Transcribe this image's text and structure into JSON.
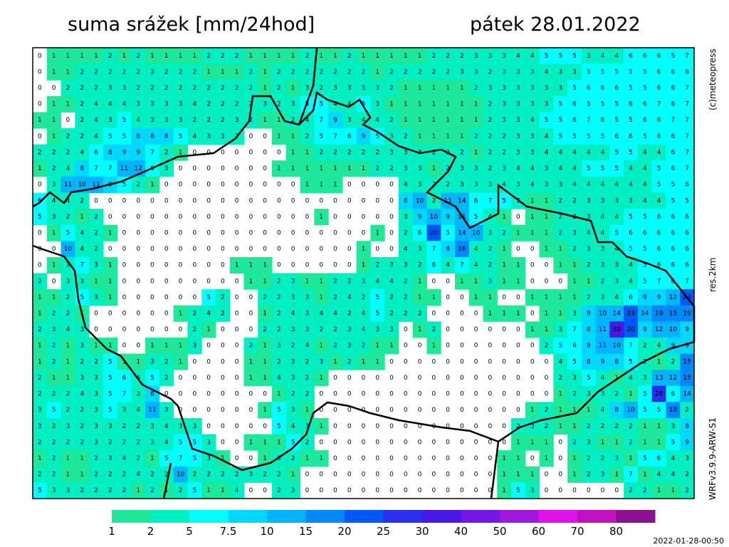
{
  "title": "suma srážek [mm/24hod]",
  "date": "pátek 28.01.2022",
  "copyright": "(c)meteopress",
  "resolution": "res.2km",
  "model": "WRFv3.9.9-ARW-S1",
  "timestamp": "2022-01-28-00:50",
  "legend": {
    "ticks": [
      1,
      2,
      5,
      7.5,
      10,
      15,
      20,
      25,
      30,
      40,
      50,
      60,
      70,
      80
    ],
    "colors": [
      "#1ee89a",
      "#00f0c4",
      "#00ffff",
      "#00d8ff",
      "#00b4ff",
      "#0088ff",
      "#0058f8",
      "#2a2ef0",
      "#4818e8",
      "#7418e8",
      "#a018e0",
      "#e010e8",
      "#c010c0",
      "#8c1090"
    ]
  },
  "grid": {
    "rows": [
      [
        0,
        1,
        1,
        1,
        1,
        2,
        1,
        2,
        1,
        1,
        1,
        1,
        2,
        2,
        2,
        1,
        1,
        1,
        1,
        2,
        1,
        1,
        2,
        1,
        1,
        1,
        1,
        1,
        2,
        2,
        2,
        3,
        3,
        3,
        4,
        4,
        5,
        5,
        5,
        3,
        4,
        4,
        6,
        6,
        6,
        5,
        7
      ],
      [
        0,
        1,
        1,
        2,
        2,
        2,
        2,
        2,
        3,
        2,
        2,
        2,
        1,
        1,
        1,
        2,
        1,
        2,
        2,
        2,
        2,
        2,
        2,
        2,
        1,
        2,
        2,
        2,
        2,
        2,
        3,
        3,
        2,
        3,
        3,
        3,
        4,
        3,
        3,
        5,
        5,
        5,
        5,
        5,
        6,
        6,
        6
      ],
      [
        0,
        0,
        2,
        2,
        2,
        3,
        3,
        2,
        2,
        2,
        2,
        2,
        2,
        2,
        2,
        2,
        1,
        2,
        1,
        3,
        2,
        3,
        3,
        3,
        3,
        2,
        1,
        1,
        1,
        1,
        1,
        2,
        3,
        3,
        3,
        3,
        3,
        3,
        5,
        6,
        6,
        6,
        5,
        5,
        6,
        6,
        7
      ],
      [
        0,
        1,
        1,
        2,
        4,
        4,
        4,
        3,
        3,
        3,
        3,
        4,
        2,
        2,
        2,
        2,
        3,
        2,
        3,
        5,
        5,
        4,
        4,
        5,
        3,
        1,
        1,
        1,
        1,
        1,
        1,
        1,
        2,
        3,
        3,
        3,
        3,
        5,
        6,
        5,
        5,
        5,
        6,
        6,
        7,
        6,
        7
      ],
      [
        1,
        1,
        0,
        2,
        4,
        3,
        5,
        4,
        3,
        3,
        3,
        2,
        2,
        2,
        3,
        2,
        1,
        1,
        2,
        4,
        7,
        9,
        3,
        4,
        4,
        2,
        1,
        1,
        1,
        1,
        1,
        1,
        2,
        3,
        3,
        4,
        5,
        5,
        6,
        7,
        6,
        5,
        5,
        6,
        6,
        7,
        7
      ],
      [
        0,
        1,
        2,
        2,
        4,
        5,
        5,
        8,
        8,
        8,
        5,
        4,
        3,
        3,
        2,
        0,
        0,
        1,
        1,
        2,
        5,
        7,
        6,
        9,
        5,
        3,
        2,
        1,
        1,
        1,
        1,
        2,
        2,
        2,
        3,
        3,
        4,
        5,
        5,
        5,
        5,
        6,
        6,
        5,
        6,
        6,
        7
      ],
      [
        2,
        2,
        2,
        4,
        6,
        8,
        9,
        9,
        7,
        2,
        1,
        0,
        0,
        0,
        0,
        0,
        0,
        0,
        1,
        1,
        2,
        2,
        2,
        2,
        2,
        3,
        3,
        3,
        2,
        2,
        2,
        1,
        2,
        2,
        3,
        3,
        4,
        4,
        4,
        4,
        4,
        5,
        5,
        4,
        4,
        6,
        7
      ],
      [
        1,
        2,
        4,
        8,
        7,
        7,
        11,
        12,
        6,
        3,
        0,
        0,
        0,
        0,
        0,
        0,
        0,
        1,
        1,
        1,
        1,
        1,
        1,
        1,
        2,
        2,
        3,
        3,
        1,
        2,
        3,
        3,
        2,
        3,
        4,
        4,
        3,
        4,
        4,
        5,
        5,
        5,
        4,
        4,
        5,
        6,
        7
      ],
      [
        0,
        3,
        11,
        10,
        11,
        9,
        5,
        2,
        1,
        0,
        0,
        0,
        0,
        0,
        0,
        0,
        0,
        0,
        0,
        1,
        1,
        1,
        0,
        0,
        0,
        0,
        4,
        3,
        2,
        2,
        3,
        3,
        3,
        4,
        3,
        4,
        3,
        3,
        4,
        4,
        4,
        4,
        4,
        4,
        5,
        5,
        6
      ],
      [
        6,
        4,
        4,
        2,
        0,
        0,
        0,
        0,
        0,
        0,
        0,
        0,
        0,
        0,
        0,
        0,
        0,
        0,
        0,
        0,
        0,
        0,
        0,
        0,
        0,
        0,
        8,
        10,
        2,
        11,
        14,
        6,
        7,
        5,
        3,
        1,
        1,
        2,
        2,
        3,
        3,
        3,
        3,
        4,
        4,
        5,
        5
      ],
      [
        5,
        3,
        2,
        1,
        2,
        0,
        0,
        0,
        0,
        0,
        0,
        0,
        0,
        0,
        0,
        0,
        0,
        0,
        0,
        0,
        1,
        0,
        0,
        0,
        0,
        0,
        3,
        9,
        10,
        9,
        11,
        5,
        4,
        1,
        0,
        1,
        1,
        2,
        2,
        3,
        4,
        4,
        5,
        5,
        6,
        6,
        6
      ],
      [
        0,
        1,
        5,
        4,
        2,
        1,
        0,
        0,
        0,
        0,
        0,
        0,
        0,
        0,
        0,
        0,
        0,
        0,
        0,
        0,
        0,
        0,
        0,
        0,
        1,
        0,
        2,
        6,
        20,
        5,
        14,
        10,
        3,
        2,
        1,
        1,
        1,
        2,
        3,
        4,
        4,
        5,
        6,
        6,
        6,
        6,
        6
      ],
      [
        0,
        0,
        10,
        4,
        2,
        0,
        0,
        0,
        0,
        0,
        0,
        0,
        0,
        0,
        0,
        0,
        0,
        0,
        0,
        0,
        0,
        0,
        0,
        1,
        0,
        0,
        4,
        3,
        7,
        8,
        16,
        4,
        2,
        1,
        0,
        0,
        1,
        1,
        2,
        3,
        3,
        4,
        5,
        5,
        6,
        6,
        6
      ],
      [
        0,
        1,
        3,
        7,
        3,
        1,
        0,
        0,
        0,
        0,
        0,
        0,
        0,
        0,
        1,
        1,
        1,
        0,
        0,
        0,
        0,
        0,
        0,
        1,
        2,
        3,
        3,
        2,
        6,
        4,
        7,
        4,
        2,
        1,
        1,
        0,
        0,
        1,
        1,
        2,
        3,
        3,
        4,
        5,
        6,
        6,
        6
      ],
      [
        2,
        0,
        3,
        3,
        1,
        1,
        0,
        0,
        0,
        0,
        0,
        0,
        0,
        0,
        0,
        1,
        1,
        2,
        3,
        1,
        1,
        2,
        2,
        3,
        4,
        4,
        2,
        1,
        0,
        0,
        1,
        1,
        3,
        1,
        1,
        0,
        0,
        0,
        1,
        1,
        2,
        3,
        4,
        5,
        7,
        6,
        7
      ],
      [
        1,
        1,
        2,
        5,
        3,
        1,
        0,
        0,
        0,
        0,
        0,
        0,
        5,
        2,
        0,
        0,
        2,
        2,
        3,
        3,
        1,
        2,
        4,
        2,
        5,
        2,
        2,
        1,
        1,
        0,
        0,
        1,
        1,
        0,
        0,
        1,
        1,
        1,
        1,
        2,
        3,
        4,
        6,
        9,
        9,
        12,
        23
      ],
      [
        1,
        2,
        2,
        1,
        0,
        0,
        0,
        0,
        0,
        0,
        1,
        2,
        4,
        2,
        0,
        0,
        1,
        2,
        4,
        3,
        4,
        4,
        2,
        4,
        5,
        2,
        2,
        2,
        0,
        0,
        0,
        0,
        1,
        1,
        1,
        0,
        1,
        1,
        3,
        9,
        10,
        14,
        23,
        14,
        19,
        15,
        19
      ],
      [
        2,
        3,
        4,
        3,
        0,
        0,
        0,
        0,
        0,
        0,
        0,
        2,
        1,
        0,
        0,
        0,
        2,
        2,
        3,
        3,
        2,
        2,
        3,
        4,
        3,
        3,
        0,
        1,
        2,
        0,
        0,
        0,
        0,
        0,
        0,
        1,
        1,
        3,
        7,
        8,
        11,
        30,
        20,
        9,
        12,
        10,
        9
      ],
      [
        1,
        2,
        1,
        3,
        1,
        1,
        0,
        0,
        1,
        1,
        1,
        3,
        0,
        0,
        0,
        2,
        1,
        3,
        2,
        4,
        1,
        2,
        3,
        2,
        1,
        1,
        0,
        0,
        1,
        0,
        0,
        0,
        0,
        0,
        0,
        0,
        2,
        5,
        6,
        9,
        11,
        10,
        7,
        2,
        4,
        9,
        9
      ],
      [
        1,
        2,
        1,
        2,
        2,
        5,
        1,
        1,
        3,
        2,
        1,
        0,
        0,
        0,
        0,
        1,
        1,
        2,
        3,
        2,
        3,
        1,
        2,
        1,
        1,
        0,
        0,
        0,
        0,
        0,
        0,
        0,
        0,
        0,
        0,
        0,
        0,
        4,
        5,
        8,
        9,
        8,
        5,
        2,
        1,
        2,
        15
      ],
      [
        2,
        1,
        1,
        3,
        3,
        5,
        6,
        4,
        5,
        2,
        0,
        0,
        0,
        0,
        0,
        1,
        1,
        4,
        3,
        2,
        1,
        0,
        0,
        0,
        0,
        0,
        0,
        0,
        0,
        0,
        0,
        0,
        0,
        0,
        0,
        0,
        0,
        2,
        3,
        5,
        4,
        1,
        4,
        3,
        13,
        12,
        15
      ],
      [
        2,
        2,
        2,
        4,
        3,
        5,
        7,
        3,
        8,
        0,
        0,
        0,
        0,
        0,
        0,
        0,
        0,
        1,
        2,
        2,
        0,
        0,
        0,
        0,
        0,
        0,
        0,
        0,
        0,
        0,
        0,
        0,
        0,
        0,
        0,
        0,
        0,
        1,
        2,
        3,
        3,
        2,
        1,
        5,
        28,
        6,
        14
      ],
      [
        3,
        5,
        2,
        2,
        3,
        5,
        3,
        4,
        11,
        3,
        0,
        0,
        0,
        0,
        0,
        0,
        1,
        5,
        3,
        1,
        0,
        0,
        0,
        0,
        0,
        0,
        0,
        0,
        0,
        0,
        0,
        0,
        0,
        0,
        0,
        1,
        2,
        1,
        1,
        1,
        4,
        8,
        10,
        5,
        5,
        18,
        2
      ],
      [
        3,
        2,
        3,
        2,
        3,
        3,
        2,
        2,
        3,
        4,
        3,
        3,
        0,
        0,
        0,
        0,
        0,
        5,
        4,
        3,
        1,
        0,
        0,
        0,
        0,
        0,
        0,
        0,
        0,
        0,
        0,
        0,
        0,
        0,
        2,
        3,
        2,
        1,
        1,
        2,
        2,
        2,
        2,
        1,
        1,
        3,
        8
      ],
      [
        2,
        2,
        2,
        2,
        3,
        2,
        2,
        2,
        3,
        4,
        5,
        5,
        3,
        0,
        0,
        1,
        1,
        1,
        5,
        2,
        0,
        0,
        0,
        0,
        0,
        0,
        0,
        0,
        0,
        0,
        0,
        0,
        0,
        0,
        1,
        1,
        1,
        0,
        2,
        3,
        1,
        1,
        2,
        1,
        1,
        5,
        9
      ],
      [
        1,
        2,
        1,
        1,
        2,
        3,
        4,
        2,
        1,
        5,
        7,
        5,
        3,
        1,
        0,
        0,
        1,
        3,
        2,
        1,
        1,
        0,
        0,
        0,
        0,
        0,
        0,
        0,
        0,
        0,
        0,
        0,
        0,
        1,
        1,
        0,
        1,
        0,
        1,
        2,
        2,
        3,
        1,
        5,
        6,
        4,
        3
      ],
      [
        2,
        2,
        1,
        1,
        2,
        2,
        2,
        4,
        2,
        2,
        10,
        2,
        2,
        2,
        2,
        3,
        2,
        2,
        1,
        0,
        0,
        0,
        0,
        0,
        0,
        0,
        0,
        0,
        0,
        0,
        0,
        0,
        0,
        1,
        1,
        1,
        0,
        0,
        1,
        2,
        3,
        1,
        7,
        1,
        4,
        4,
        2
      ],
      [
        5,
        3,
        3,
        2,
        2,
        2,
        2,
        1,
        2,
        1,
        2,
        5,
        1,
        1,
        4,
        0,
        0,
        2,
        3,
        0,
        0,
        0,
        0,
        0,
        0,
        0,
        0,
        0,
        0,
        0,
        0,
        0,
        0,
        1,
        5,
        3,
        0,
        0,
        0,
        0,
        0,
        0,
        2,
        2,
        1,
        1,
        2
      ]
    ]
  }
}
